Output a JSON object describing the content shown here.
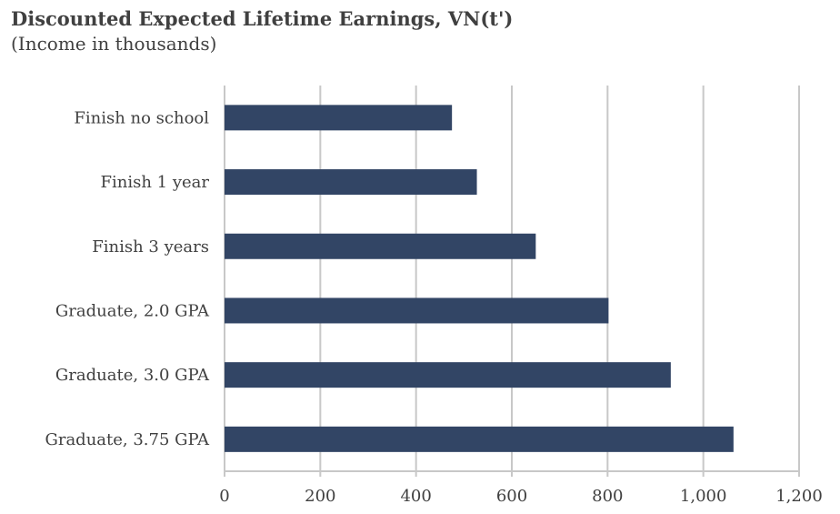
{
  "chart_data": {
    "type": "bar",
    "orientation": "horizontal",
    "title": "Discounted Expected Lifetime Earnings, VN(t')",
    "subtitle": "(Income in thousands)",
    "categories": [
      "Finish no school",
      "Finish 1 year",
      "Finish 3 years",
      "Graduate, 2.0 GPA",
      "Graduate, 3.0 GPA",
      "Graduate, 3.75 GPA"
    ],
    "values": [
      475,
      527,
      650,
      802,
      932,
      1063
    ],
    "x_ticks": [
      "0",
      "200",
      "400",
      "600",
      "800",
      "1,000",
      "1,200"
    ],
    "xlim": [
      0,
      1200
    ],
    "grid": "vertical",
    "bar_color": "#324565",
    "grid_color": "#c8c8c8"
  }
}
